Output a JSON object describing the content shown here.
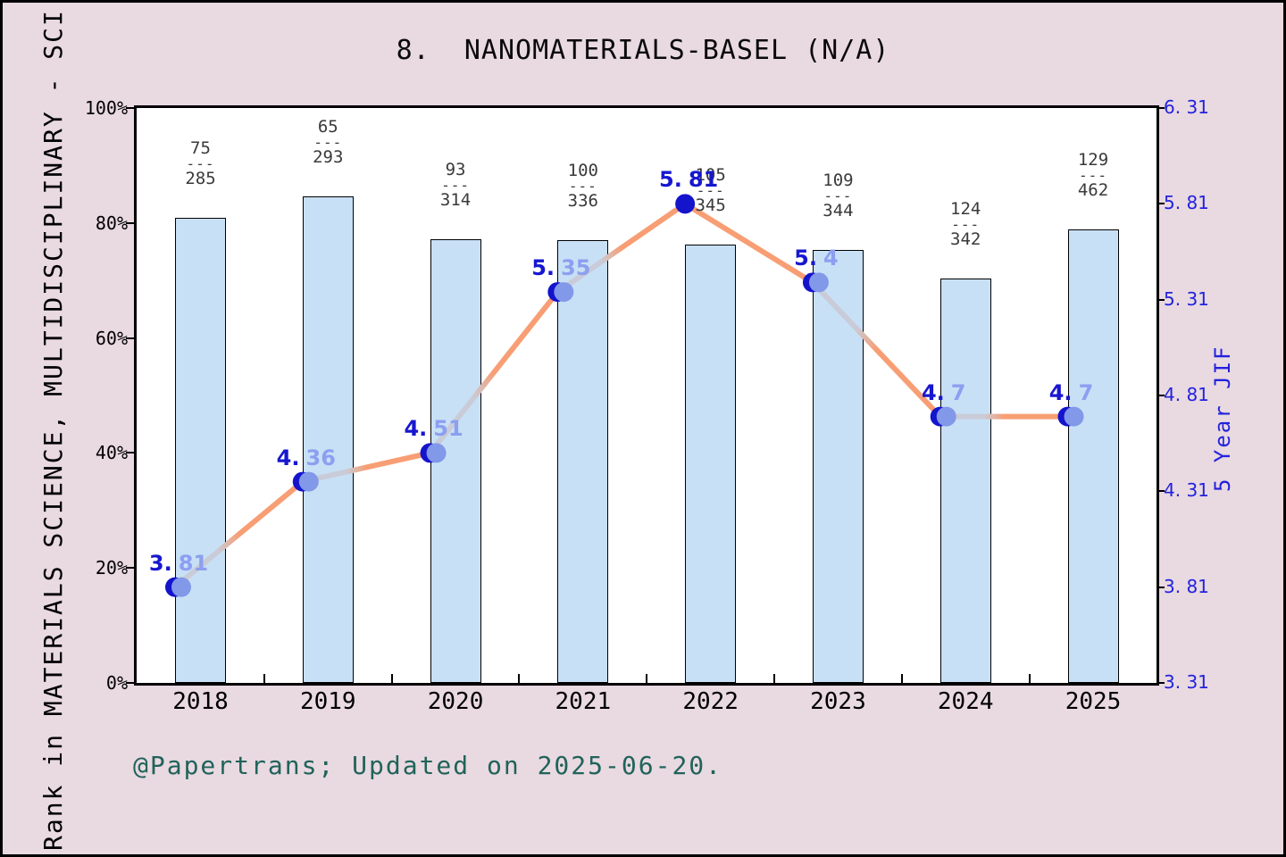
{
  "window": {
    "title": "8.  NANOMATERIALS-BASEL (N/A)",
    "footer": "@Papertrans; Updated on 2025-06-20.",
    "left_axis_title": "Rank in MATERIALS SCIENCE, MULTIDISCIPLINARY - SCI",
    "right_axis_title": "5 Year JIF"
  },
  "chart_data": {
    "type": "bar",
    "title": "8.  NANOMATERIALS-BASEL (N/A)",
    "categories": [
      "2018",
      "2019",
      "2020",
      "2021",
      "2022",
      "2023",
      "2024",
      "2025"
    ],
    "series": [
      {
        "name": "Rank percentile bars",
        "axis": "left",
        "unit": "%",
        "values": [
          80.9,
          84.6,
          77.2,
          77.0,
          76.2,
          75.3,
          70.3,
          78.9
        ]
      },
      {
        "name": "5 Year JIF line",
        "axis": "right",
        "values": [
          3.81,
          4.36,
          4.51,
          5.35,
          5.81,
          5.4,
          4.7,
          4.7
        ]
      }
    ],
    "bar_fraction_labels": [
      [
        "75",
        "285"
      ],
      [
        "65",
        "293"
      ],
      [
        "93",
        "314"
      ],
      [
        "100",
        "336"
      ],
      [
        "105",
        "345"
      ],
      [
        "109",
        "344"
      ],
      [
        "124",
        "342"
      ],
      [
        "129",
        "462"
      ]
    ],
    "point_labels": [
      [
        "3.",
        "81"
      ],
      [
        "4.",
        "36"
      ],
      [
        "4.",
        "51"
      ],
      [
        "5.",
        "35"
      ],
      [
        "5.",
        "81"
      ],
      [
        "5.",
        "4"
      ],
      [
        "4.",
        "7"
      ],
      [
        "4.",
        "7"
      ]
    ],
    "solid_point_index": 4,
    "fraction_separator": "---",
    "left_axis": {
      "ticks": [
        "0%",
        "20%",
        "40%",
        "60%",
        "80%",
        "100%"
      ],
      "range": [
        0,
        100
      ]
    },
    "right_axis": {
      "ticks": [
        "3. 31",
        "3. 81",
        "4. 31",
        "4. 81",
        "5. 31",
        "5. 81",
        "6. 31"
      ],
      "range": [
        3.31,
        6.31
      ],
      "label": "5 Year JIF"
    },
    "xlabel": "",
    "ylabel_left": "Rank in MATERIALS SCIENCE, MULTIDISCIPLINARY - SCI",
    "grid": false,
    "legend": null
  },
  "colors": {
    "background": "#e9d9e1",
    "plot_background": "#ffffff",
    "frame_black": "#000000",
    "bar_fill": "#c8e0f6",
    "bar_border": "#000000",
    "line_orange": "#f89e74",
    "line_gray": "#c9ccd8",
    "marker_dark": "#1414cc",
    "marker_light": "#8298e8",
    "point_label_dark": "#1717cf",
    "point_label_light": "#8c9ff0",
    "right_axis_blue": "#2222dd",
    "fraction_gray": "#3a3a3a",
    "footer_teal": "#20635a"
  }
}
